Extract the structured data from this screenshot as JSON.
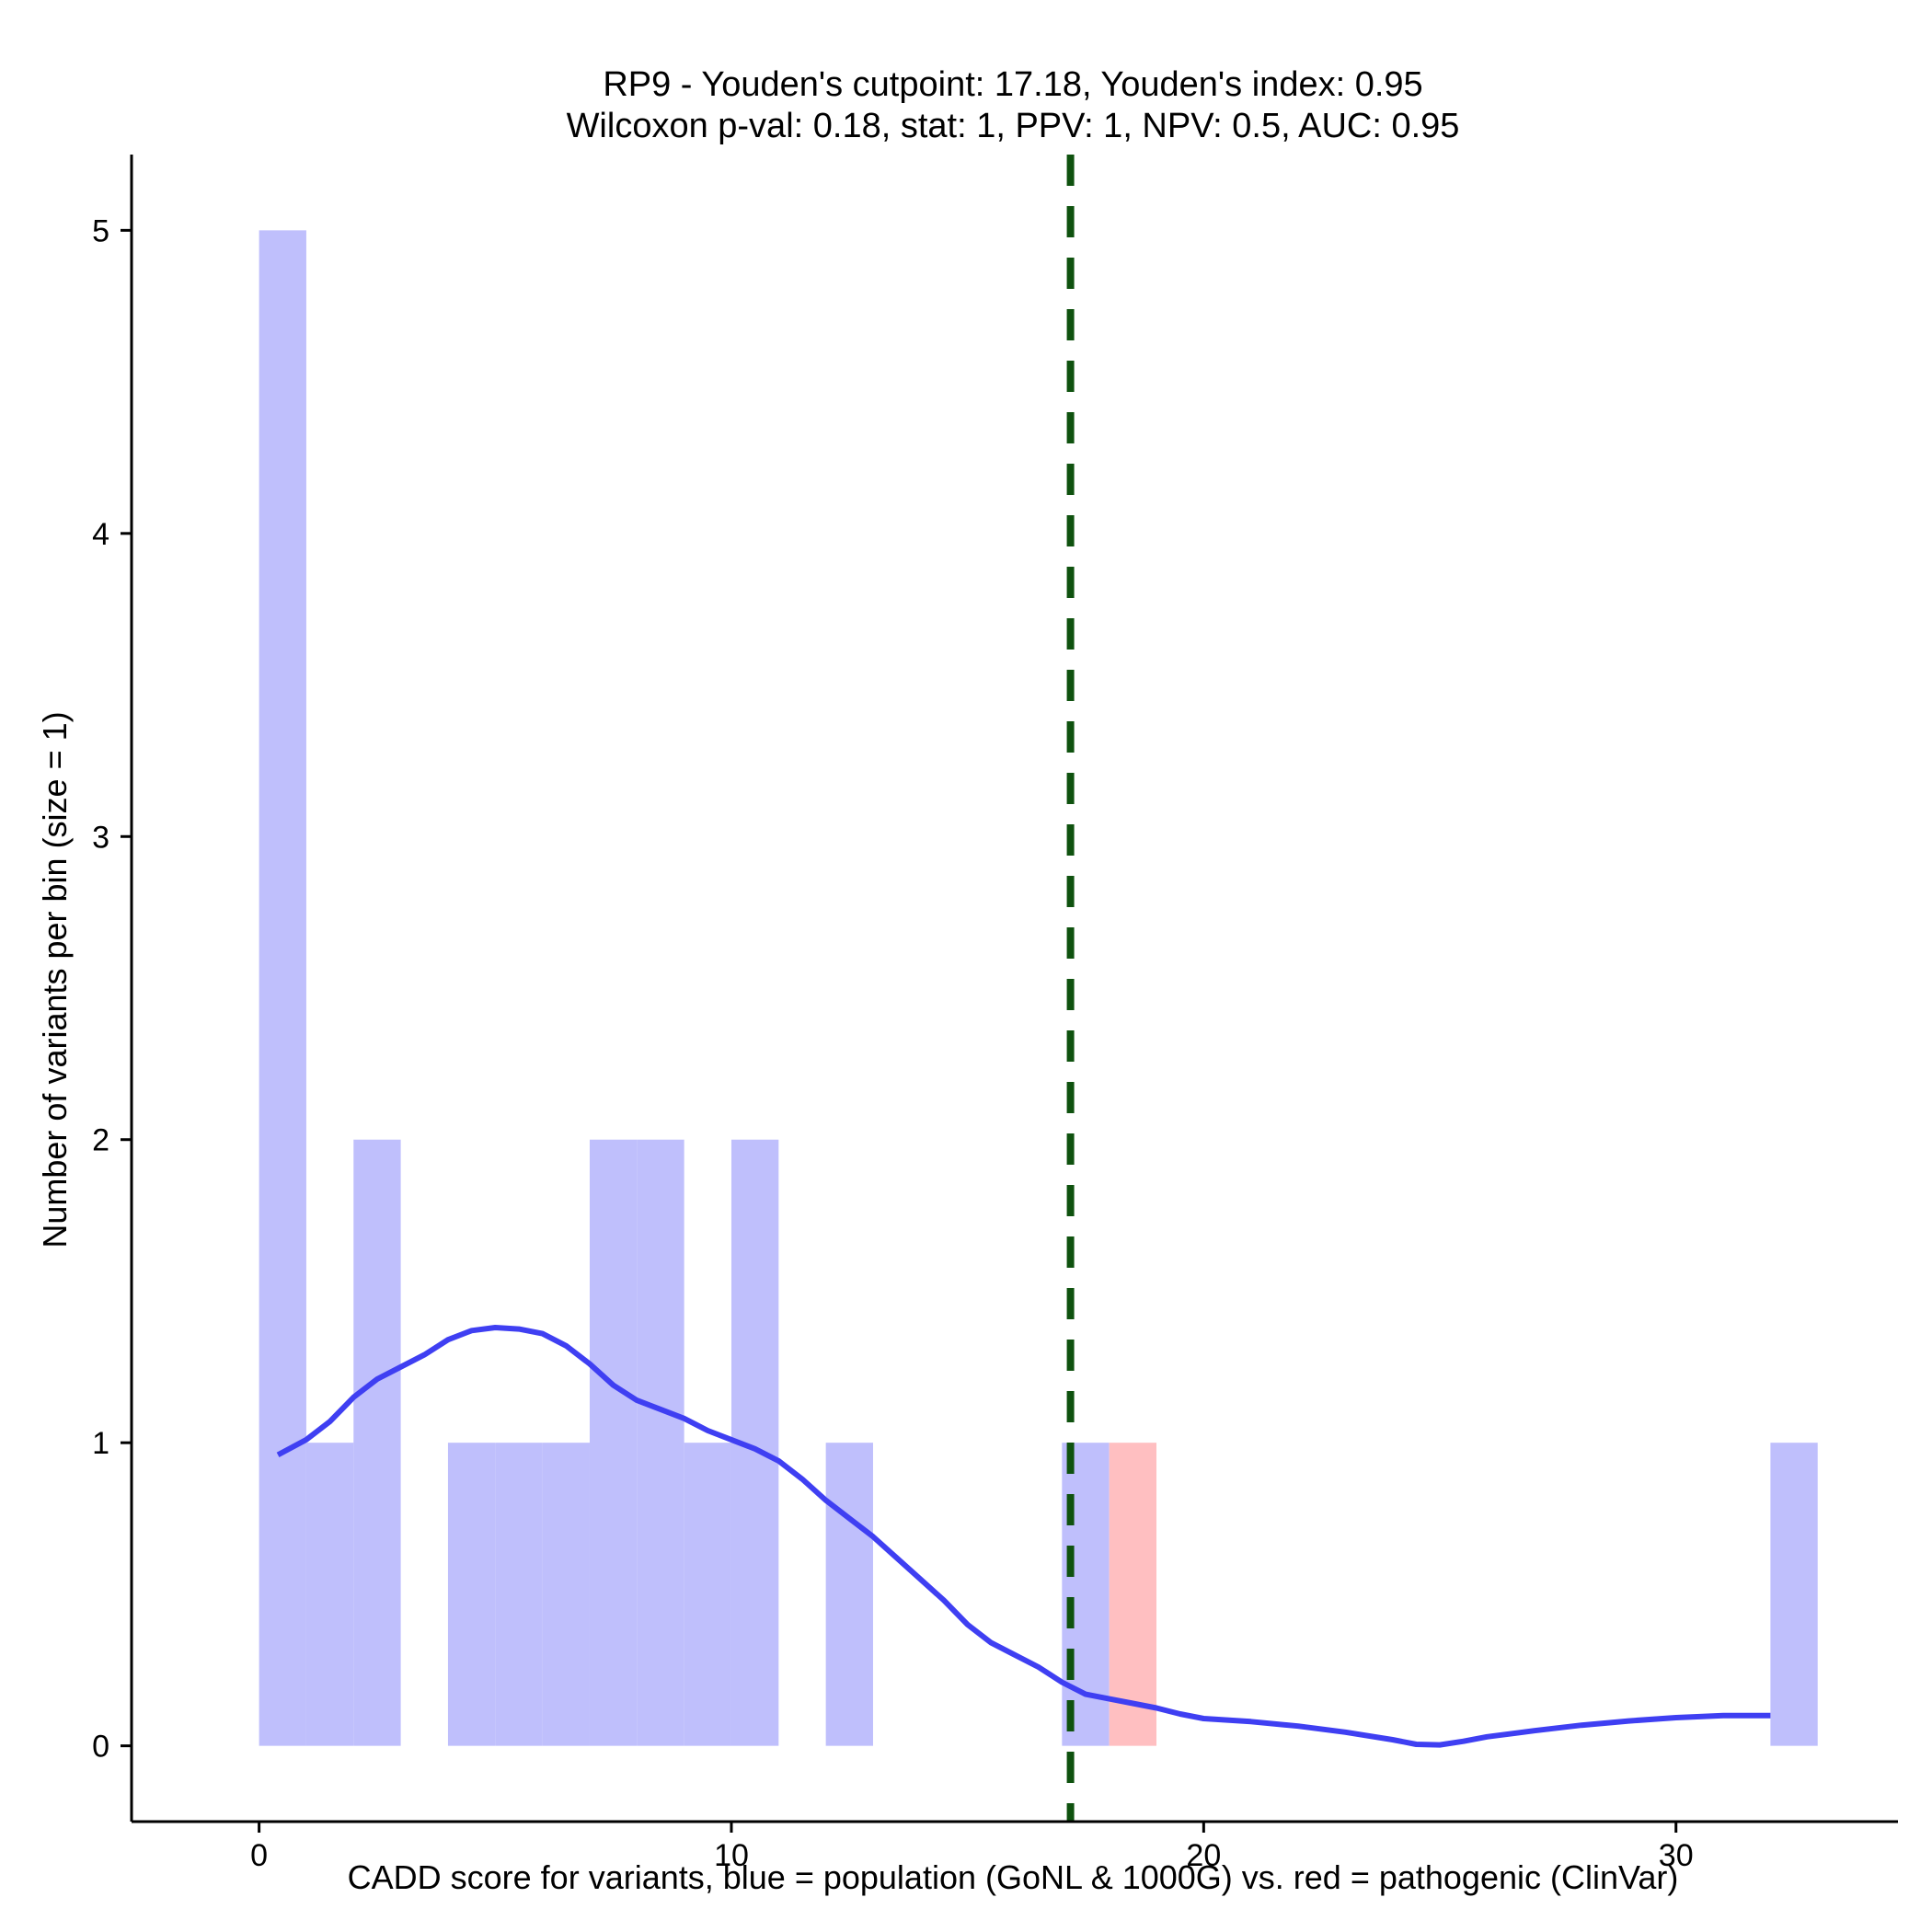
{
  "chart_data": {
    "type": "bar",
    "title_line1": "RP9 - Youden's cutpoint: 17.18, Youden's index: 0.95",
    "title_line2": "Wilcoxon p-val: 0.18, stat: 1, PPV: 1, NPV: 0.5, AUC: 0.95",
    "xlabel": "CADD score for variants, blue = population (GoNL & 1000G) vs. red = pathogenic (ClinVar)",
    "ylabel": "Number of variants per bin (size = 1)",
    "xlim": [
      -2.7,
      34.7
    ],
    "ylim": [
      -0.25,
      5.25
    ],
    "xticks": [
      0,
      10,
      20,
      30
    ],
    "yticks": [
      0,
      1,
      2,
      3,
      4,
      5
    ],
    "bin_width": 1,
    "cutpoint": 17.18,
    "series": [
      {
        "name": "population",
        "color": "#bfbffc",
        "bins": [
          {
            "x0": 0,
            "count": 5
          },
          {
            "x0": 1,
            "count": 1
          },
          {
            "x0": 2,
            "count": 2
          },
          {
            "x0": 4,
            "count": 1
          },
          {
            "x0": 5,
            "count": 1
          },
          {
            "x0": 6,
            "count": 1
          },
          {
            "x0": 7,
            "count": 2
          },
          {
            "x0": 8,
            "count": 2
          },
          {
            "x0": 9,
            "count": 1
          },
          {
            "x0": 10,
            "count": 2
          },
          {
            "x0": 12,
            "count": 1
          },
          {
            "x0": 17,
            "count": 1
          },
          {
            "x0": 32,
            "count": 1
          }
        ]
      },
      {
        "name": "pathogenic",
        "color": "#ffbfc1",
        "bins": [
          {
            "x0": 18,
            "count": 1
          }
        ]
      }
    ],
    "density_curve": {
      "color": "#3f3ff2",
      "points": [
        [
          0.4,
          0.96
        ],
        [
          1.0,
          1.01
        ],
        [
          1.5,
          1.07
        ],
        [
          2.0,
          1.15
        ],
        [
          2.5,
          1.21
        ],
        [
          3.0,
          1.25
        ],
        [
          3.5,
          1.29
        ],
        [
          4.0,
          1.34
        ],
        [
          4.5,
          1.37
        ],
        [
          5.0,
          1.38
        ],
        [
          5.5,
          1.375
        ],
        [
          6.0,
          1.36
        ],
        [
          6.5,
          1.32
        ],
        [
          7.0,
          1.26
        ],
        [
          7.5,
          1.19
        ],
        [
          8.0,
          1.14
        ],
        [
          8.5,
          1.11
        ],
        [
          9.0,
          1.08
        ],
        [
          9.5,
          1.04
        ],
        [
          10.0,
          1.01
        ],
        [
          10.5,
          0.98
        ],
        [
          11.0,
          0.94
        ],
        [
          11.5,
          0.88
        ],
        [
          12.0,
          0.81
        ],
        [
          12.5,
          0.75
        ],
        [
          13.0,
          0.69
        ],
        [
          13.5,
          0.62
        ],
        [
          14.0,
          0.55
        ],
        [
          14.5,
          0.48
        ],
        [
          15.0,
          0.4
        ],
        [
          15.5,
          0.34
        ],
        [
          16.0,
          0.3
        ],
        [
          16.5,
          0.26
        ],
        [
          17.0,
          0.21
        ],
        [
          17.5,
          0.17
        ],
        [
          18.0,
          0.155
        ],
        [
          18.5,
          0.14
        ],
        [
          19.0,
          0.125
        ],
        [
          19.5,
          0.105
        ],
        [
          20.0,
          0.09
        ],
        [
          21.0,
          0.08
        ],
        [
          22.0,
          0.065
        ],
        [
          23.0,
          0.045
        ],
        [
          24.0,
          0.02
        ],
        [
          24.5,
          0.005
        ],
        [
          25.0,
          0.003
        ],
        [
          25.5,
          0.015
        ],
        [
          26.0,
          0.03
        ],
        [
          27.0,
          0.05
        ],
        [
          28.0,
          0.068
        ],
        [
          29.0,
          0.082
        ],
        [
          30.0,
          0.093
        ],
        [
          31.0,
          0.1
        ],
        [
          32.0,
          0.1
        ]
      ]
    },
    "cutpoint_color": "#0f520f"
  }
}
